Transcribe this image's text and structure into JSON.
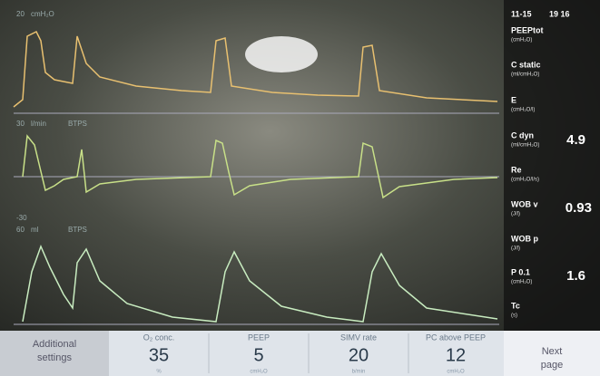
{
  "header": {
    "date": "11-15",
    "time": "19 16"
  },
  "waveforms": [
    {
      "scale": "20",
      "unit": "cmH₂O"
    },
    {
      "scale": "30",
      "unit": "l/min",
      "note": "BTPS",
      "lower": "-30"
    },
    {
      "scale": "60",
      "unit": "ml",
      "note": "BTPS"
    }
  ],
  "parameters": [
    {
      "label": "PEEPtot",
      "unit": "(cmH₂O)"
    },
    {
      "label": "C static",
      "unit": "(ml/cmH₂O)"
    },
    {
      "label": "E",
      "unit": "(cmH₂O/l)"
    },
    {
      "label": "C dyn",
      "unit": "(ml/cmH₂O)",
      "value": "4.9"
    },
    {
      "label": "Re",
      "unit": "(cmH₂O/l/s)"
    },
    {
      "label": "WOB v",
      "unit": "(J/l)",
      "value": "0.93"
    },
    {
      "label": "WOB p",
      "unit": "(J/l)"
    },
    {
      "label": "P 0.1",
      "unit": "(cmH₂O)",
      "value": "1.6"
    },
    {
      "label": "Tc",
      "unit": "(s)"
    }
  ],
  "settings_bar": {
    "additional": "Additional settings",
    "settings": [
      {
        "label": "O₂ conc.",
        "value": "35",
        "unit": "%"
      },
      {
        "label": "PEEP",
        "value": "5",
        "unit": "cmH₂O"
      },
      {
        "label": "SIMV rate",
        "value": "20",
        "unit": "b/min"
      },
      {
        "label": "PC above PEEP",
        "value": "12",
        "unit": "cmH₂O"
      }
    ],
    "next": "Next page"
  }
}
